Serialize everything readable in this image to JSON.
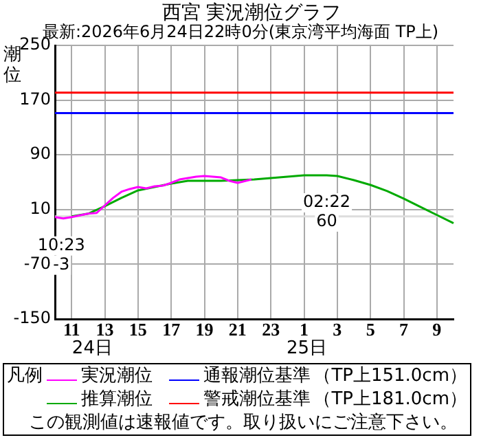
{
  "chart_data": {
    "type": "line",
    "title": "西宮 実況潮位グラフ",
    "subtitle": "最新:2026年6月24日22時0分(東京湾平均海面 TP上)",
    "ylabel": "潮位",
    "legend_title": "凡例",
    "series": [
      {
        "name": "実況潮位",
        "color": "#ff00ff",
        "x": [
          "2026-06-24T10:00",
          "2026-06-24T10:30",
          "2026-06-24T11:00",
          "2026-06-24T12:00",
          "2026-06-24T12:30",
          "2026-06-24T13:00",
          "2026-06-24T13:30",
          "2026-06-24T14:00",
          "2026-06-24T14:30",
          "2026-06-24T15:00",
          "2026-06-24T15:30",
          "2026-06-24T16:00",
          "2026-06-24T16:30",
          "2026-06-24T17:00",
          "2026-06-24T17:30",
          "2026-06-24T18:00",
          "2026-06-24T18:30",
          "2026-06-24T19:00",
          "2026-06-24T19:30",
          "2026-06-24T20:00",
          "2026-06-24T20:30",
          "2026-06-24T21:00",
          "2026-06-24T21:30",
          "2026-06-24T21:50"
        ],
        "values": [
          -1,
          -3,
          -1,
          4,
          5,
          16,
          27,
          36,
          40,
          43,
          41,
          44,
          45,
          49,
          54,
          56,
          58,
          59,
          58,
          57,
          52,
          49,
          52,
          54
        ]
      },
      {
        "name": "推算潮位",
        "color": "#00aa00",
        "x": [
          "2026-06-24T11:00",
          "2026-06-24T12:00",
          "2026-06-24T13:00",
          "2026-06-24T14:00",
          "2026-06-24T15:00",
          "2026-06-24T16:00",
          "2026-06-24T17:00",
          "2026-06-24T18:00",
          "2026-06-24T19:00",
          "2026-06-24T20:00",
          "2026-06-24T21:00",
          "2026-06-24T22:00",
          "2026-06-24T23:00",
          "2026-06-25T00:00",
          "2026-06-25T01:00",
          "2026-06-25T02:22",
          "2026-06-25T03:00",
          "2026-06-25T04:00",
          "2026-06-25T05:00",
          "2026-06-25T06:00",
          "2026-06-25T07:00",
          "2026-06-25T08:00",
          "2026-06-25T09:00",
          "2026-06-25T10:00"
        ],
        "values": [
          0,
          4,
          15,
          27,
          38,
          43,
          48,
          52,
          52,
          52,
          53,
          54,
          56,
          58,
          60,
          60,
          59,
          53,
          46,
          37,
          26,
          14,
          2,
          -10
        ]
      }
    ],
    "xlim": [
      "2026-06-24T10:00",
      "2026-06-25T10:00"
    ],
    "xticks": [
      {
        "value": "2026-06-24T11:00",
        "label": "11"
      },
      {
        "value": "2026-06-24T13:00",
        "label": "13"
      },
      {
        "value": "2026-06-24T15:00",
        "label": "15"
      },
      {
        "value": "2026-06-24T17:00",
        "label": "17"
      },
      {
        "value": "2026-06-24T19:00",
        "label": "19"
      },
      {
        "value": "2026-06-24T21:00",
        "label": "21"
      },
      {
        "value": "2026-06-24T23:00",
        "label": "23"
      },
      {
        "value": "2026-06-25T01:00",
        "label": "1"
      },
      {
        "value": "2026-06-25T03:00",
        "label": "3"
      },
      {
        "value": "2026-06-25T05:00",
        "label": "5"
      },
      {
        "value": "2026-06-25T07:00",
        "label": "7"
      },
      {
        "value": "2026-06-25T09:00",
        "label": "9"
      }
    ],
    "x2lim": [
      "2026-06-24T10:00",
      "2026-06-25T10:00"
    ],
    "x2ticks": [
      {
        "value": "2026-06-24T12:15",
        "label": "24日"
      },
      {
        "value": "2026-06-25T01:10",
        "label": "25日"
      }
    ],
    "ylim": [
      -150,
      250
    ],
    "yticks": [
      -150,
      -70,
      10,
      90,
      170,
      250
    ],
    "grid": true,
    "legend": "bottom",
    "marker": "none",
    "line_style": "solid",
    "ref_lines": [
      {
        "axis": "y",
        "value": 151,
        "label": "通報潮位基準",
        "color": "#0000ff"
      },
      {
        "axis": "y",
        "value": 181,
        "label": "警戒潮位基準",
        "color": "#ff0000"
      },
      {
        "axis": "y",
        "value": 0,
        "color": "#dddddd"
      }
    ],
    "annotations": [
      {
        "text": "10:23\n-3",
        "x": "2026-06-24T10:23",
        "y": -3
      },
      {
        "text": "02:22\n60",
        "x": "2026-06-25T02:22",
        "y": 60
      },
      "（TP上151.0cm）",
      "（TP上181.0cm）",
      "この観測値は速報値です。取り扱いにご注意下さい。"
    ]
  }
}
